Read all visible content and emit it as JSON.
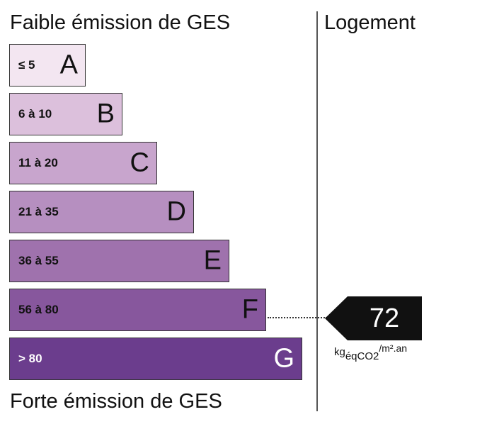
{
  "header": {
    "top_title": "Faible émission de GES",
    "bottom_title": "Forte émission de GES",
    "column_title": "Logement"
  },
  "classes": [
    {
      "letter": "A",
      "range": "≤ 5",
      "color": "#f3e6f1"
    },
    {
      "letter": "B",
      "range": "6 à 10",
      "color": "#dcc0dc"
    },
    {
      "letter": "C",
      "range": "11 à 20",
      "color": "#c8a5cd"
    },
    {
      "letter": "D",
      "range": "21 à 35",
      "color": "#b68fc0"
    },
    {
      "letter": "E",
      "range": "36 à 55",
      "color": "#9f72ad"
    },
    {
      "letter": "F",
      "range": "56 à 80",
      "color": "#87579d"
    },
    {
      "letter": "G",
      "range": "> 80",
      "color": "#6b3d8d"
    }
  ],
  "indicator": {
    "value": "72",
    "class": "F",
    "unit_base": "kg",
    "unit_sub": "éqCO2",
    "unit_sup": "/m².an",
    "color": "#111111"
  }
}
